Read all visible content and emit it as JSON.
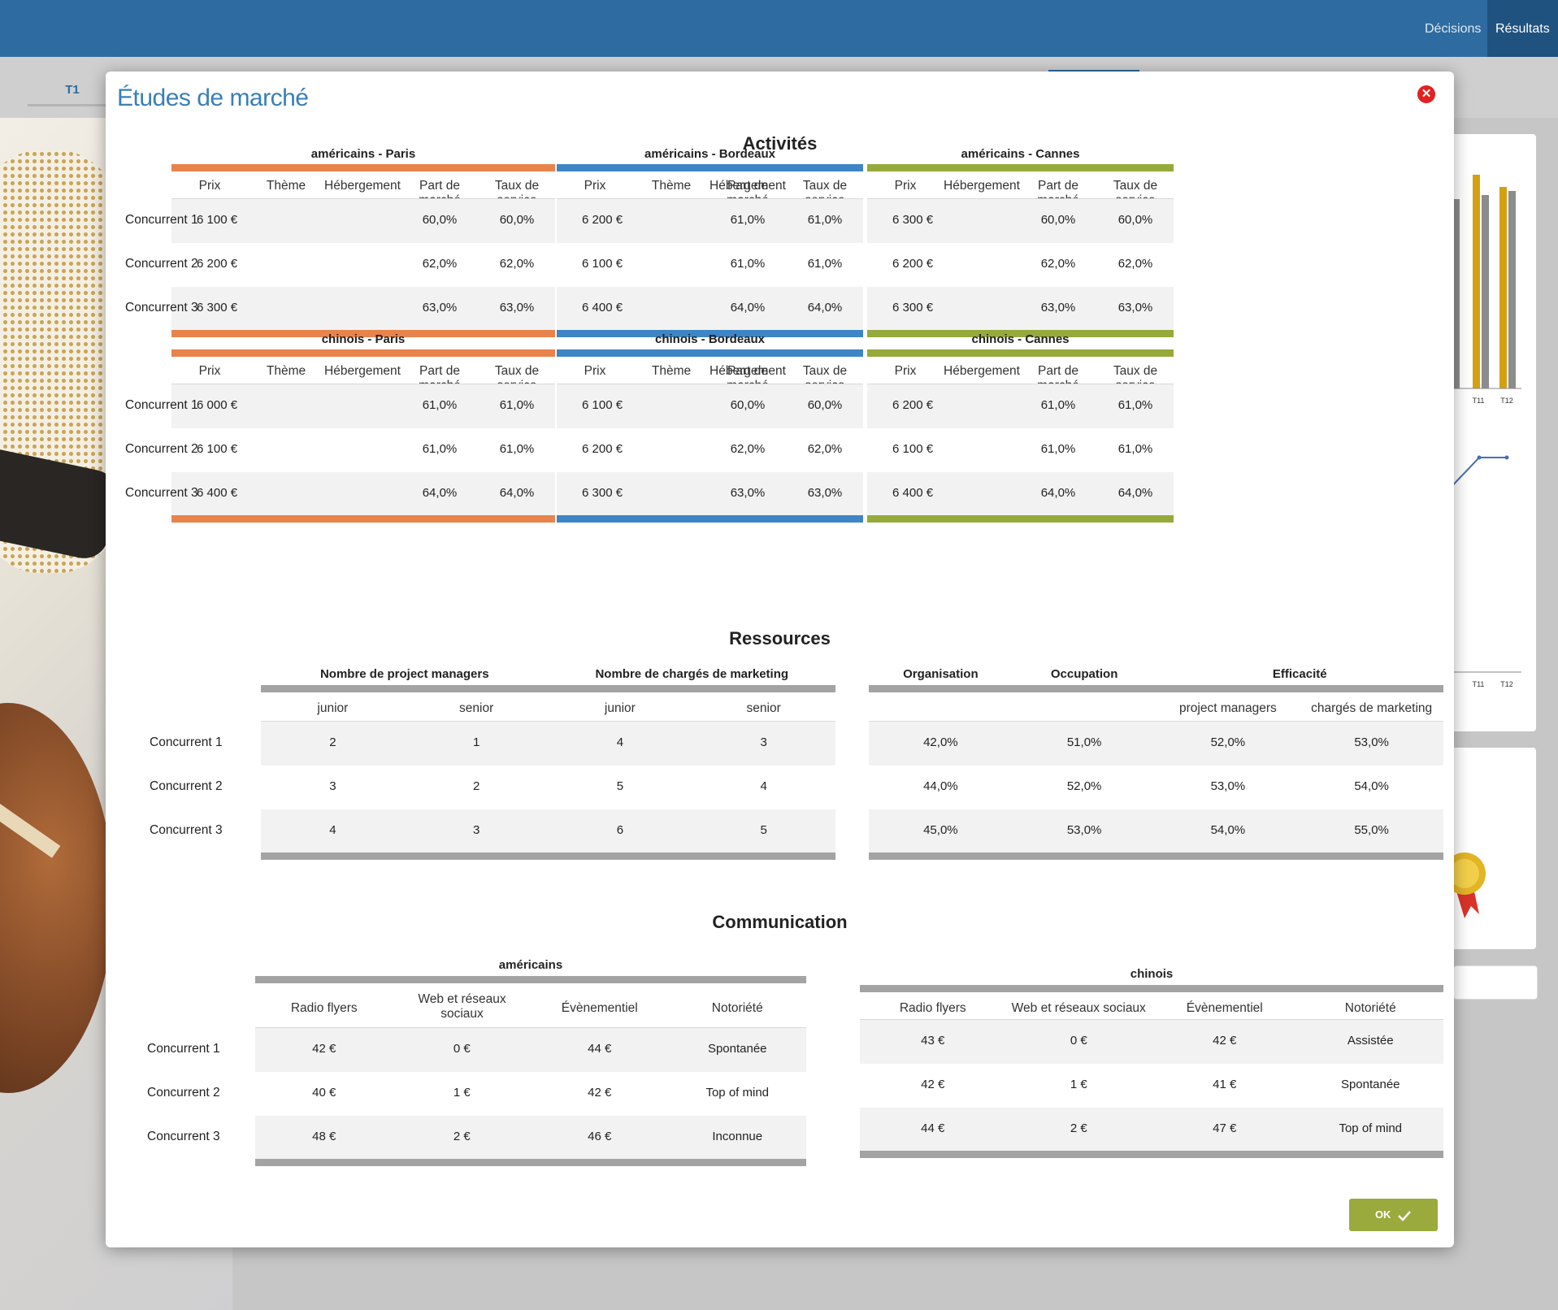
{
  "nav": {
    "decisions": "Décisions",
    "results": "Résultats"
  },
  "subtab": {
    "label": "T1"
  },
  "chart_fragments": {
    "label_t11": "T11",
    "label_t12": "T12"
  },
  "modal": {
    "title": "Études de marché",
    "close_icon": "close-icon",
    "ok_label": "OK",
    "ok_icon": "checkmark-icon"
  },
  "colors": {
    "paris": "#e8834b",
    "bordeaux": "#3e85c5",
    "cannes": "#96aa3b",
    "grey": "#a3a3a3",
    "ok": "#9aaa3c",
    "close": "#e22121"
  },
  "activites": {
    "title": "Activités",
    "headers": [
      "Prix",
      "Thème",
      "Hébergement",
      "Part de marché",
      "Taux de service"
    ],
    "headers_no_theme": [
      "Prix",
      "Hébergement",
      "Part de marché",
      "Taux de service"
    ],
    "row_labels": [
      "Concurrent 1",
      "Concurrent 2",
      "Concurrent 3"
    ],
    "groups": [
      {
        "title": "américains - Paris",
        "color": "#e8834b",
        "rows": [
          [
            "6 100 €",
            "",
            "",
            "60,0%",
            "60,0%"
          ],
          [
            "6 200 €",
            "",
            "",
            "62,0%",
            "62,0%"
          ],
          [
            "6 300 €",
            "",
            "",
            "63,0%",
            "63,0%"
          ]
        ]
      },
      {
        "title": "américains - Bordeaux",
        "color": "#3e85c5",
        "rows": [
          [
            "6 200 €",
            "",
            "",
            "61,0%",
            "61,0%"
          ],
          [
            "6 100 €",
            "",
            "",
            "61,0%",
            "61,0%"
          ],
          [
            "6 400 €",
            "",
            "",
            "64,0%",
            "64,0%"
          ]
        ]
      },
      {
        "title": "américains - Cannes",
        "color": "#96aa3b",
        "rows": [
          [
            "6 300 €",
            "",
            "60,0%",
            "60,0%"
          ],
          [
            "6 200 €",
            "",
            "62,0%",
            "62,0%"
          ],
          [
            "6 300 €",
            "",
            "63,0%",
            "63,0%"
          ]
        ]
      },
      {
        "title": "chinois - Paris",
        "color": "#e8834b",
        "rows": [
          [
            "6 000 €",
            "",
            "",
            "61,0%",
            "61,0%"
          ],
          [
            "6 100 €",
            "",
            "",
            "61,0%",
            "61,0%"
          ],
          [
            "6 400 €",
            "",
            "",
            "64,0%",
            "64,0%"
          ]
        ]
      },
      {
        "title": "chinois - Bordeaux",
        "color": "#3e85c5",
        "rows": [
          [
            "6 100 €",
            "",
            "",
            "60,0%",
            "60,0%"
          ],
          [
            "6 200 €",
            "",
            "",
            "62,0%",
            "62,0%"
          ],
          [
            "6 300 €",
            "",
            "",
            "63,0%",
            "63,0%"
          ]
        ]
      },
      {
        "title": "chinois - Cannes",
        "color": "#96aa3b",
        "rows": [
          [
            "6 200 €",
            "",
            "61,0%",
            "61,0%"
          ],
          [
            "6 100 €",
            "",
            "61,0%",
            "61,0%"
          ],
          [
            "6 400 €",
            "",
            "64,0%",
            "64,0%"
          ]
        ]
      }
    ]
  },
  "ressources": {
    "title": "Ressources",
    "row_labels": [
      "Concurrent 1",
      "Concurrent 2",
      "Concurrent 3"
    ],
    "staff": {
      "titles": [
        "Nombre de project managers",
        "Nombre de chargés de marketing"
      ],
      "subheaders": [
        "junior",
        "senior",
        "junior",
        "senior"
      ],
      "rows": [
        [
          "2",
          "1",
          "4",
          "3"
        ],
        [
          "3",
          "2",
          "5",
          "4"
        ],
        [
          "4",
          "3",
          "6",
          "5"
        ]
      ]
    },
    "perf": {
      "titles": [
        "Organisation",
        "Occupation",
        "Efficacité"
      ],
      "subheaders": [
        "",
        "",
        "project managers",
        "chargés de marketing"
      ],
      "rows": [
        [
          "42,0%",
          "51,0%",
          "52,0%",
          "53,0%"
        ],
        [
          "44,0%",
          "52,0%",
          "53,0%",
          "54,0%"
        ],
        [
          "45,0%",
          "53,0%",
          "54,0%",
          "55,0%"
        ]
      ]
    }
  },
  "communication": {
    "title": "Communication",
    "row_labels": [
      "Concurrent 1",
      "Concurrent 2",
      "Concurrent 3"
    ],
    "americains": {
      "title": "américains",
      "headers": [
        "Radio flyers",
        "Web et réseaux sociaux",
        "Évènementiel",
        "Notoriété"
      ],
      "rows": [
        [
          "42 €",
          "0 €",
          "44 €",
          "Spontanée"
        ],
        [
          "40 €",
          "1 €",
          "42 €",
          "Top of mind"
        ],
        [
          "48 €",
          "2 €",
          "46 €",
          "Inconnue"
        ]
      ]
    },
    "chinois": {
      "title": "chinois",
      "headers": [
        "Radio flyers",
        "Web et réseaux sociaux",
        "Évènementiel",
        "Notoriété"
      ],
      "rows": [
        [
          "43 €",
          "0 €",
          "42 €",
          "Assistée"
        ],
        [
          "42 €",
          "1 €",
          "41 €",
          "Spontanée"
        ],
        [
          "44 €",
          "2 €",
          "47 €",
          "Top of mind"
        ]
      ]
    }
  }
}
